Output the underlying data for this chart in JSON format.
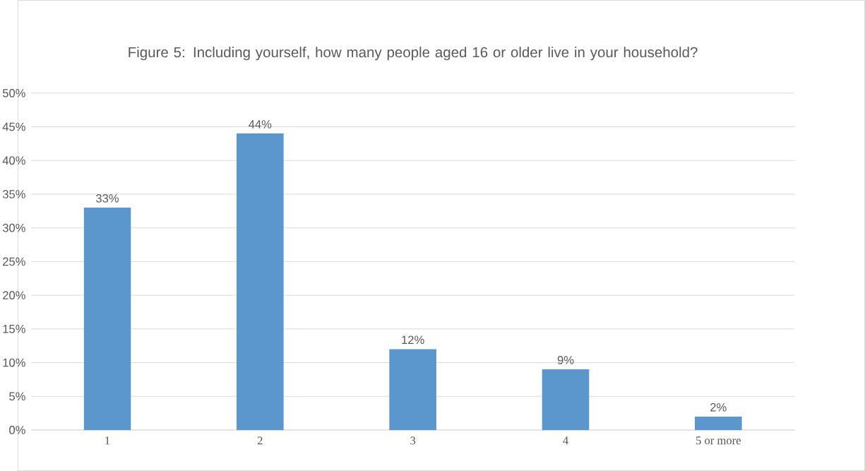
{
  "chart_data": {
    "type": "bar",
    "title": "Figure 5: Including yourself, how many people aged 16 or older live in your household?",
    "categories": [
      "1",
      "2",
      "3",
      "4",
      "5 or more"
    ],
    "values": [
      33,
      44,
      12,
      9,
      2
    ],
    "value_labels": [
      "33%",
      "44%",
      "12%",
      "9%",
      "2%"
    ],
    "color": "#5b96cd",
    "ylim": [
      0,
      50
    ],
    "yticks": [
      {
        "value": 0,
        "label": "0%"
      },
      {
        "value": 5,
        "label": "5%"
      },
      {
        "value": 10,
        "label": "10%"
      },
      {
        "value": 15,
        "label": "15%"
      },
      {
        "value": 20,
        "label": "20%"
      },
      {
        "value": 25,
        "label": "25%"
      },
      {
        "value": 30,
        "label": "30%"
      },
      {
        "value": 35,
        "label": "35%"
      },
      {
        "value": 40,
        "label": "40%"
      },
      {
        "value": 45,
        "label": "45%"
      },
      {
        "value": 50,
        "label": "50%"
      }
    ],
    "grid": "y"
  }
}
